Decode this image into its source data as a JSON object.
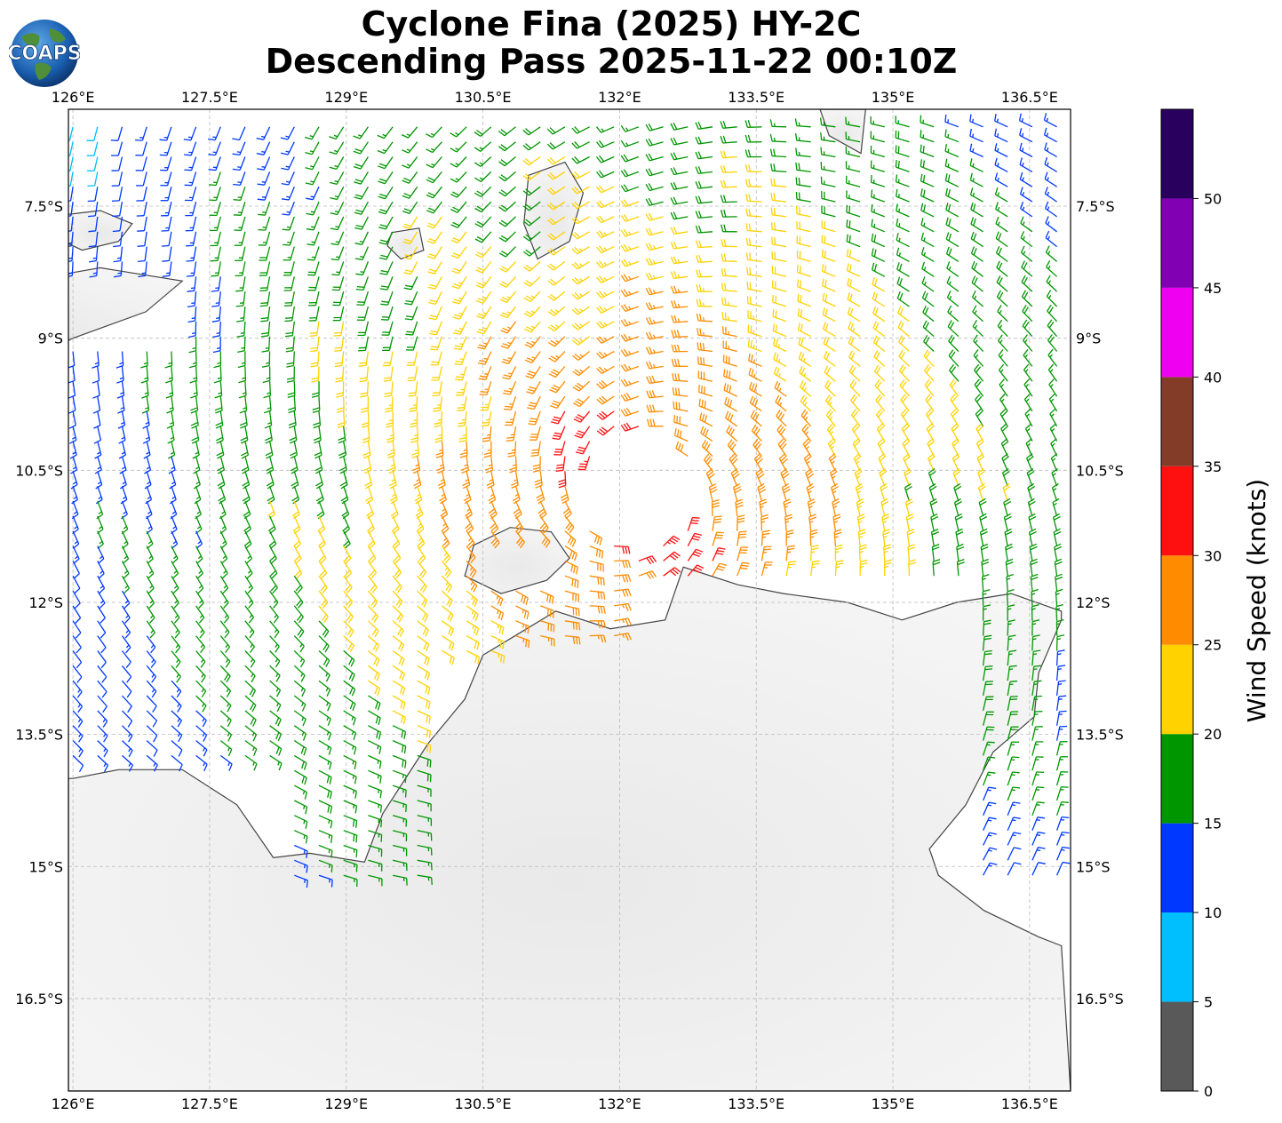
{
  "header": {
    "title_line_1": "Cyclone Fina (2025) HY-2C",
    "title_line_2": "Descending Pass 2025-11-22 00:10Z",
    "logo_text": "COAPS",
    "logo_icon": "globe-icon"
  },
  "map": {
    "lon_range": [
      125.95,
      136.95
    ],
    "lat_range": [
      -17.55,
      -6.4
    ],
    "lon_ticks": [
      {
        "value": 126.0,
        "label": "126°E"
      },
      {
        "value": 127.5,
        "label": "127.5°E"
      },
      {
        "value": 129.0,
        "label": "129°E"
      },
      {
        "value": 130.5,
        "label": "130.5°E"
      },
      {
        "value": 132.0,
        "label": "132°E"
      },
      {
        "value": 133.5,
        "label": "133.5°E"
      },
      {
        "value": 135.0,
        "label": "135°E"
      },
      {
        "value": 136.5,
        "label": "136.5°E"
      }
    ],
    "lat_ticks": [
      {
        "value": -7.5,
        "label": "7.5°S"
      },
      {
        "value": -9.0,
        "label": "9°S"
      },
      {
        "value": -10.5,
        "label": "10.5°S"
      },
      {
        "value": -12.0,
        "label": "12°S"
      },
      {
        "value": -13.5,
        "label": "13.5°S"
      },
      {
        "value": -15.0,
        "label": "15°S"
      },
      {
        "value": -16.5,
        "label": "16.5°S"
      }
    ],
    "grid": true,
    "storm_center": {
      "lon": 132.2,
      "lat": -10.75
    },
    "swath_edge_lon": [
      [
        -7.0,
        128.8
      ],
      [
        -17.0,
        136.0
      ]
    ],
    "land": [
      {
        "name": "Timor",
        "outline": [
          [
            124.0,
            -8.6
          ],
          [
            125.2,
            -8.4
          ],
          [
            126.3,
            -8.2
          ],
          [
            127.2,
            -8.35
          ],
          [
            126.8,
            -8.7
          ],
          [
            126.0,
            -9.0
          ],
          [
            125.0,
            -9.5
          ],
          [
            124.0,
            -9.4
          ]
        ]
      },
      {
        "name": "Wetar",
        "outline": [
          [
            125.9,
            -7.6
          ],
          [
            126.3,
            -7.55
          ],
          [
            126.65,
            -7.7
          ],
          [
            126.5,
            -7.9
          ],
          [
            126.1,
            -8.0
          ],
          [
            125.9,
            -7.9
          ]
        ]
      },
      {
        "name": "Tanimbar",
        "outline": [
          [
            131.0,
            -7.15
          ],
          [
            131.4,
            -7.0
          ],
          [
            131.6,
            -7.35
          ],
          [
            131.45,
            -7.9
          ],
          [
            131.1,
            -8.1
          ],
          [
            130.95,
            -7.7
          ]
        ]
      },
      {
        "name": "Babar",
        "outline": [
          [
            129.5,
            -7.8
          ],
          [
            129.8,
            -7.75
          ],
          [
            129.85,
            -8.0
          ],
          [
            129.6,
            -8.1
          ],
          [
            129.45,
            -7.95
          ]
        ]
      },
      {
        "name": "Aru",
        "outline": [
          [
            134.2,
            -6.4
          ],
          [
            134.7,
            -6.4
          ],
          [
            134.65,
            -6.9
          ],
          [
            134.3,
            -6.7
          ]
        ]
      },
      {
        "name": "Tiwi Islands",
        "outline": [
          [
            130.4,
            -11.35
          ],
          [
            130.8,
            -11.15
          ],
          [
            131.25,
            -11.2
          ],
          [
            131.45,
            -11.5
          ],
          [
            131.2,
            -11.75
          ],
          [
            130.7,
            -11.9
          ],
          [
            130.3,
            -11.7
          ]
        ]
      },
      {
        "name": "Australia",
        "outline": [
          [
            126.0,
            -14.0
          ],
          [
            126.5,
            -13.9
          ],
          [
            127.2,
            -13.9
          ],
          [
            127.8,
            -14.3
          ],
          [
            128.2,
            -14.9
          ],
          [
            128.6,
            -14.85
          ],
          [
            129.2,
            -14.95
          ],
          [
            129.4,
            -14.4
          ],
          [
            129.9,
            -13.6
          ],
          [
            130.3,
            -13.1
          ],
          [
            130.5,
            -12.6
          ],
          [
            130.9,
            -12.35
          ],
          [
            131.3,
            -12.1
          ],
          [
            131.9,
            -12.3
          ],
          [
            132.5,
            -12.2
          ],
          [
            132.7,
            -11.6
          ],
          [
            133.3,
            -11.8
          ],
          [
            133.8,
            -11.9
          ],
          [
            134.5,
            -12.0
          ],
          [
            135.1,
            -12.2
          ],
          [
            135.7,
            -12.0
          ],
          [
            136.3,
            -11.9
          ],
          [
            136.85,
            -12.1
          ],
          [
            136.85,
            -12.2
          ],
          [
            136.6,
            -12.8
          ],
          [
            136.55,
            -13.3
          ],
          [
            136.1,
            -13.7
          ],
          [
            135.8,
            -14.3
          ],
          [
            135.4,
            -14.8
          ],
          [
            135.5,
            -15.1
          ],
          [
            136.0,
            -15.5
          ],
          [
            136.6,
            -15.8
          ],
          [
            136.85,
            -15.9
          ],
          [
            136.95,
            -17.55
          ],
          [
            125.95,
            -17.55
          ],
          [
            125.95,
            -14.0
          ]
        ]
      }
    ]
  },
  "colorbar": {
    "label": "Wind Speed (knots)",
    "bounds": [
      0,
      55
    ],
    "bins": [
      {
        "from": 0,
        "to": 5,
        "color": "#595959"
      },
      {
        "from": 5,
        "to": 10,
        "color": "#00bfff"
      },
      {
        "from": 10,
        "to": 15,
        "color": "#0038ff"
      },
      {
        "from": 15,
        "to": 20,
        "color": "#009600"
      },
      {
        "from": 20,
        "to": 25,
        "color": "#ffd200"
      },
      {
        "from": 25,
        "to": 30,
        "color": "#ff8c00"
      },
      {
        "from": 30,
        "to": 35,
        "color": "#ff1010"
      },
      {
        "from": 35,
        "to": 40,
        "color": "#833c28"
      },
      {
        "from": 40,
        "to": 45,
        "color": "#f000f0"
      },
      {
        "from": 45,
        "to": 50,
        "color": "#8200b4"
      },
      {
        "from": 50,
        "to": 55,
        "color": "#2a005f"
      }
    ],
    "ticks": [
      {
        "value": 0,
        "label": "0"
      },
      {
        "value": 5,
        "label": "5"
      },
      {
        "value": 10,
        "label": "10"
      },
      {
        "value": 15,
        "label": "15"
      },
      {
        "value": 20,
        "label": "20"
      },
      {
        "value": 25,
        "label": "25"
      },
      {
        "value": 30,
        "label": "30"
      },
      {
        "value": 35,
        "label": "35"
      },
      {
        "value": 40,
        "label": "40"
      },
      {
        "value": 45,
        "label": "45"
      },
      {
        "value": 50,
        "label": "50"
      }
    ]
  }
}
